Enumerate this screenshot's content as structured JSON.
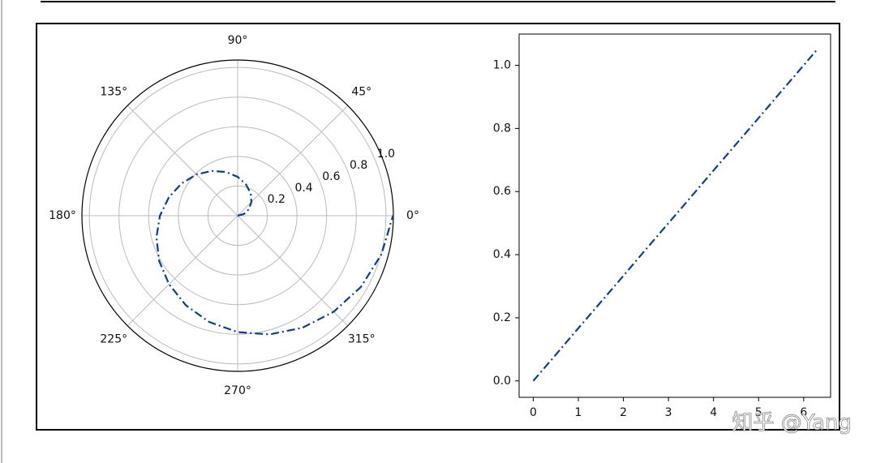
{
  "chart_data": [
    {
      "type": "polar",
      "x": [
        0,
        15,
        30,
        45,
        60,
        75,
        90,
        105,
        120,
        135,
        150,
        165,
        180,
        195,
        210,
        225,
        240,
        255,
        270,
        285,
        300,
        315,
        330,
        345,
        360
      ],
      "values": [
        0,
        0.044,
        0.087,
        0.131,
        0.175,
        0.218,
        0.262,
        0.305,
        0.349,
        0.393,
        0.436,
        0.48,
        0.524,
        0.567,
        0.611,
        0.654,
        0.698,
        0.742,
        0.785,
        0.829,
        0.873,
        0.916,
        0.96,
        1.004,
        1.047
      ],
      "color": "#0e3f8a",
      "linestyle": "dashdot",
      "grid": true,
      "ylim": [
        0,
        1.05
      ],
      "yticks": [
        0.2,
        0.4,
        0.6,
        0.8,
        {
          "value": 1,
          "label": "1.0"
        }
      ],
      "xticks": [
        {
          "value": 0,
          "label": "0°"
        },
        {
          "value": 45,
          "label": "45°"
        },
        {
          "value": 90,
          "label": "90°"
        },
        {
          "value": 135,
          "label": "135°"
        },
        {
          "value": 180,
          "label": "180°"
        },
        {
          "value": 225,
          "label": "225°"
        },
        {
          "value": 270,
          "label": "270°"
        },
        {
          "value": 315,
          "label": "315°"
        }
      ]
    },
    {
      "type": "line",
      "x": [
        0,
        0.5,
        1,
        1.5,
        2,
        2.5,
        3,
        3.5,
        4,
        4.5,
        5,
        5.5,
        6,
        6.28
      ],
      "values": [
        0,
        0.083,
        0.167,
        0.25,
        0.333,
        0.417,
        0.5,
        0.583,
        0.667,
        0.75,
        0.833,
        0.917,
        1,
        1.047
      ],
      "color": "#0e3f8a",
      "linestyle": "dashdot",
      "grid": false,
      "xlim": [
        -0.314,
        6.597
      ],
      "ylim": [
        -0.052,
        1.099
      ],
      "xticks": [
        0,
        1,
        2,
        3,
        4,
        5,
        6
      ],
      "yticks": [
        {
          "value": 0,
          "label": "0.0"
        },
        0.2,
        0.4,
        0.6,
        0.8,
        {
          "value": 1,
          "label": "1.0"
        }
      ]
    }
  ],
  "watermark": "知乎 @Yang"
}
